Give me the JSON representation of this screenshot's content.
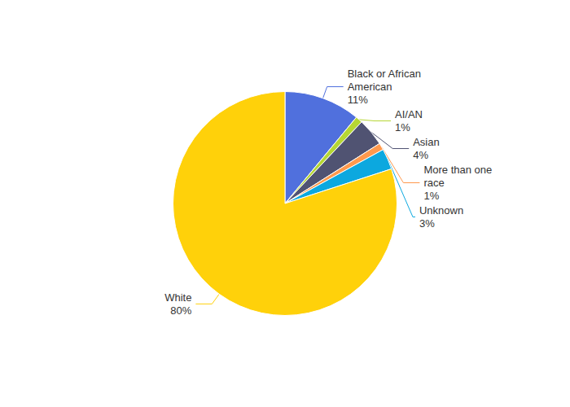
{
  "chart_data": {
    "type": "pie",
    "categories": [
      "Black or African\nAmerican",
      "AI/AN",
      "Asian",
      "More than one\nrace",
      "Unknown",
      "White"
    ],
    "values": [
      11,
      1,
      4,
      1,
      3,
      80
    ],
    "value_labels": [
      "11%",
      "1%",
      "4%",
      "1%",
      "3%",
      "80%"
    ],
    "data_labels": true,
    "legend": false
  }
}
